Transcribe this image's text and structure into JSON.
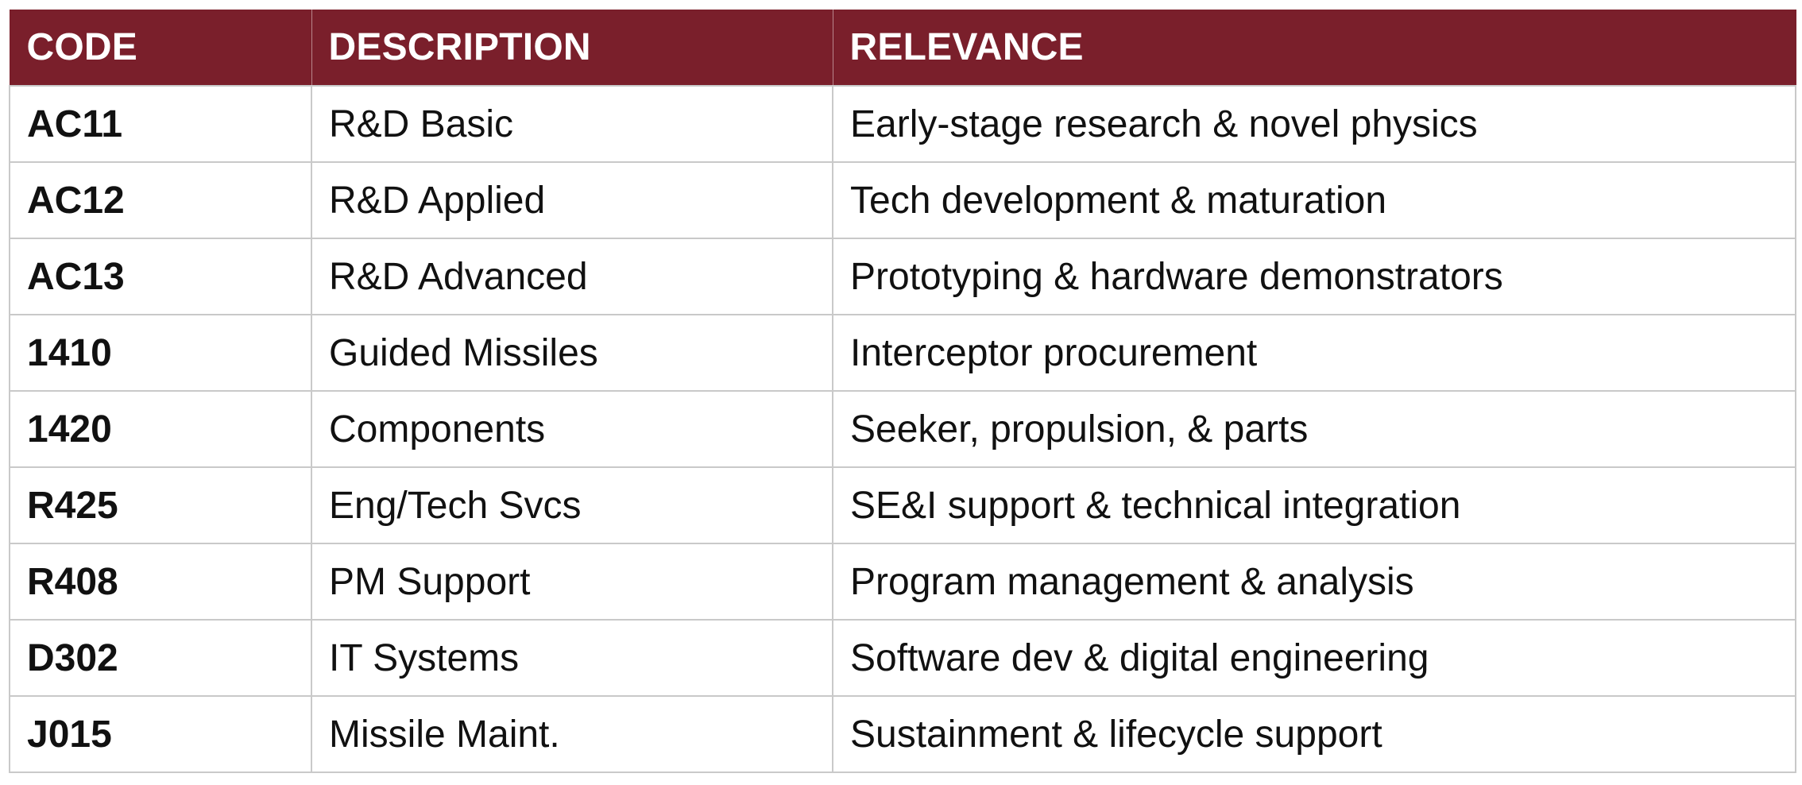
{
  "table": {
    "headers": [
      "CODE",
      "DESCRIPTION",
      "RELEVANCE"
    ],
    "rows": [
      [
        "AC11",
        "R&D Basic",
        "Early-stage research & novel physics"
      ],
      [
        "AC12",
        "R&D Applied",
        "Tech development & maturation"
      ],
      [
        "AC13",
        "R&D Advanced",
        "Prototyping & hardware demonstrators"
      ],
      [
        "1410",
        "Guided Missiles",
        "Interceptor procurement"
      ],
      [
        "1420",
        "Components",
        "Seeker, propulsion, & parts"
      ],
      [
        "R425",
        "Eng/Tech Svcs",
        "SE&I support & technical integration"
      ],
      [
        "R408",
        "PM Support",
        "Program management & analysis"
      ],
      [
        "D302",
        "IT Systems",
        "Software dev & digital engineering"
      ],
      [
        "J015",
        "Missile Maint.",
        "Sustainment & lifecycle support"
      ]
    ]
  },
  "colors": {
    "header_background": "#7a1f2b",
    "header_text": "#ffffff",
    "body_text": "#111111",
    "grid_lines": "#c9c9c9"
  }
}
